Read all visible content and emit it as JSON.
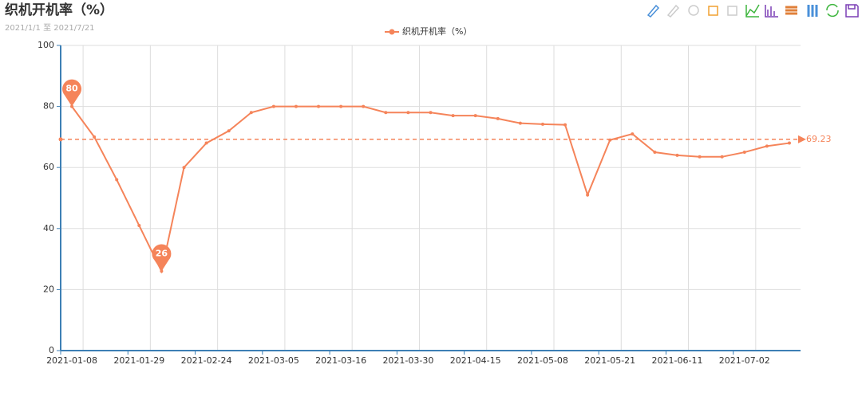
{
  "chart_data": {
    "type": "line",
    "title": "织机开机率（%）",
    "subtitle": "2021/1/1 至 2021/7/21",
    "x": [
      "2021-01-08",
      null,
      null,
      "2021-01-29",
      null,
      null,
      "2021-02-24",
      null,
      null,
      "2021-03-05",
      null,
      null,
      "2021-03-16",
      null,
      null,
      "2021-03-30",
      null,
      null,
      "2021-04-15",
      null,
      null,
      "2021-05-08",
      null,
      null,
      "2021-05-21",
      null,
      null,
      "2021-06-11",
      null,
      null,
      "2021-07-02",
      null,
      null
    ],
    "series": [
      {
        "name": "织机开机率（%）",
        "color": "#f5845a",
        "values": [
          80,
          70,
          56,
          41,
          26,
          60,
          68,
          72,
          78,
          80,
          80,
          80,
          80,
          80,
          78,
          78,
          78,
          77,
          77,
          76,
          74.5,
          74.2,
          74,
          51,
          69,
          71,
          65,
          64,
          63.5,
          63.5,
          65,
          67,
          68
        ]
      }
    ],
    "mark_points": [
      {
        "index": 0,
        "value": 80
      },
      {
        "index": 4,
        "value": 26
      }
    ],
    "mark_line_average": 69.23,
    "ylim": [
      0,
      100
    ],
    "yticks": [
      0,
      20,
      40,
      60,
      80,
      100
    ],
    "grid": true
  }
}
